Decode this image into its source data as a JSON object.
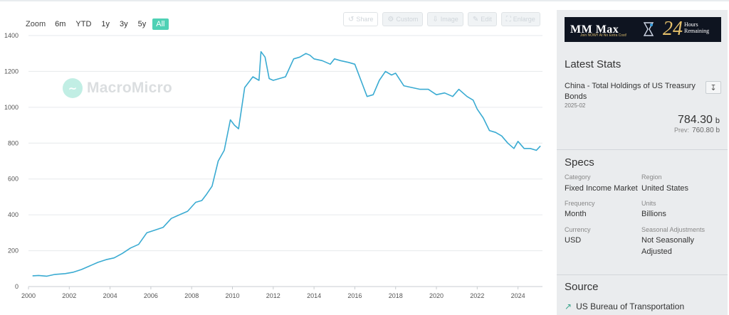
{
  "zoom": {
    "label": "Zoom",
    "options": [
      "6m",
      "YTD",
      "1y",
      "3y",
      "5y",
      "All"
    ],
    "active": "All"
  },
  "toolbar": [
    {
      "icon": "share-icon",
      "label": "Share"
    },
    {
      "icon": "custom-icon",
      "label": "Custom"
    },
    {
      "icon": "download-image-icon",
      "label": "Image"
    },
    {
      "icon": "edit-icon",
      "label": "Edit"
    },
    {
      "icon": "enlarge-icon",
      "label": "Enlarge"
    }
  ],
  "watermark": {
    "text": "MacroMicro"
  },
  "colors": {
    "line": "#3aabd2",
    "accent": "#4fd1b5",
    "sidebar_bg": "#eaecee"
  },
  "chart_data": {
    "type": "line",
    "xlim": [
      "2000-01",
      "2025-02"
    ],
    "ylim": [
      0,
      1400
    ],
    "x_ticks": [
      "2000",
      "2002",
      "2004",
      "2006",
      "2008",
      "2010",
      "2012",
      "2014",
      "2016",
      "2018",
      "2020",
      "2022",
      "2024"
    ],
    "y_ticks": [
      "0",
      "200",
      "400",
      "600",
      "800",
      "1000",
      "1200",
      "1400"
    ],
    "series": [
      {
        "x": [
          2000.2,
          2000.5,
          2000.9,
          2001.3,
          2001.8,
          2002.2,
          2002.6,
          2003.0,
          2003.4,
          2003.8,
          2004.2,
          2004.6,
          2005.0,
          2005.4,
          2005.8,
          2006.2,
          2006.6,
          2007.0,
          2007.4,
          2007.8,
          2008.2,
          2008.5,
          2008.7,
          2009.0,
          2009.3,
          2009.6,
          2009.9,
          2010.1,
          2010.3,
          2010.6,
          2011.0,
          2011.3,
          2011.4,
          2011.6,
          2011.8,
          2012.0,
          2012.3,
          2012.6,
          2013.0,
          2013.3,
          2013.6,
          2013.8,
          2014.0,
          2014.4,
          2014.8,
          2015.0,
          2015.3,
          2015.7,
          2016.0,
          2016.3,
          2016.6,
          2016.9,
          2017.2,
          2017.5,
          2017.8,
          2018.0,
          2018.4,
          2018.8,
          2019.2,
          2019.6,
          2020.0,
          2020.4,
          2020.8,
          2021.1,
          2021.5,
          2021.8,
          2022.0,
          2022.3,
          2022.6,
          2022.9,
          2023.2,
          2023.5,
          2023.8,
          2024.0,
          2024.3,
          2024.6,
          2024.9,
          2025.1
        ],
        "y": [
          60,
          62,
          58,
          68,
          72,
          80,
          95,
          115,
          135,
          150,
          160,
          185,
          215,
          235,
          300,
          315,
          330,
          380,
          400,
          420,
          470,
          480,
          510,
          560,
          700,
          760,
          930,
          900,
          880,
          1110,
          1170,
          1150,
          1310,
          1280,
          1160,
          1150,
          1160,
          1170,
          1270,
          1280,
          1300,
          1290,
          1270,
          1260,
          1240,
          1270,
          1260,
          1250,
          1240,
          1150,
          1060,
          1070,
          1150,
          1200,
          1180,
          1190,
          1120,
          1110,
          1100,
          1100,
          1070,
          1080,
          1060,
          1100,
          1060,
          1040,
          990,
          940,
          870,
          860,
          840,
          800,
          770,
          810,
          770,
          770,
          760,
          784
        ]
      }
    ]
  },
  "sidebar": {
    "ad": {
      "title": "MM Max",
      "subtitle": "Join NOW!!  At No Extra Cost!",
      "big": "24",
      "small_line1": "Hours",
      "small_line2": "Remaining"
    },
    "latest": {
      "title": "Latest Stats",
      "name": "China - Total Holdings of US Treasury Bonds",
      "date": "2025-02",
      "value": "784.30",
      "unit": "b",
      "prev_label": "Prev:",
      "prev_value": "760.80",
      "prev_unit": "b",
      "download_icon": "download-icon"
    },
    "specs": {
      "title": "Specs",
      "category_label": "Category",
      "category": "Fixed Income Market",
      "region_label": "Region",
      "region": "United States",
      "frequency_label": "Frequency",
      "frequency": "Month",
      "units_label": "Units",
      "units": "Billions",
      "currency_label": "Currency",
      "currency": "USD",
      "seasonal_label": "Seasonal Adjustments",
      "seasonal": "Not Seasonally Adjusted"
    },
    "source": {
      "title": "Source",
      "link": "US Bureau of Transportation",
      "icon": "external-link-icon"
    }
  }
}
